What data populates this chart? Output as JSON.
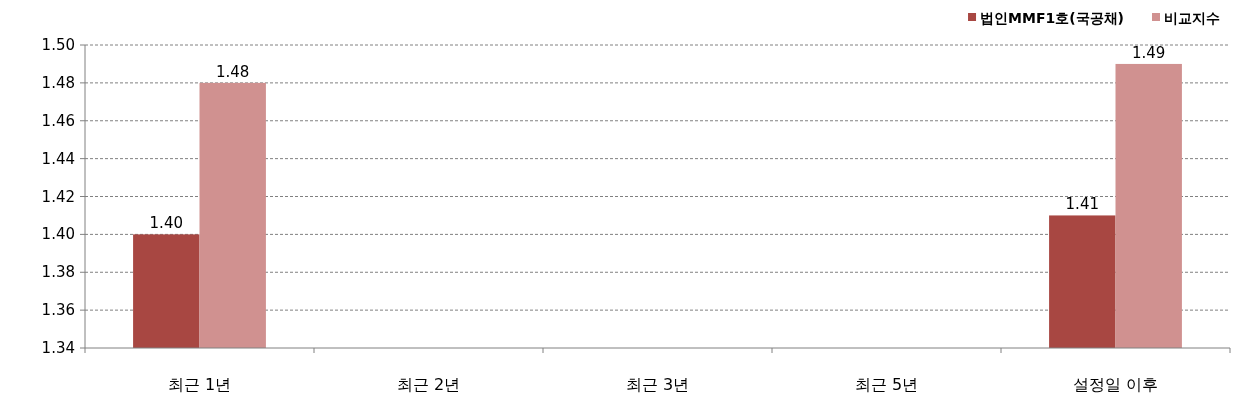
{
  "chart_data": {
    "type": "bar",
    "categories": [
      "최근 1년",
      "최근 2년",
      "최근 3년",
      "최근 5년",
      "설정일 이후"
    ],
    "series": [
      {
        "name": "법인MMF1호(국공채)",
        "color": "#a84742",
        "values": [
          1.4,
          null,
          null,
          null,
          1.41
        ],
        "value_labels": [
          "1.40",
          null,
          null,
          null,
          "1.41"
        ]
      },
      {
        "name": "비교지수",
        "color": "#d09190",
        "values": [
          1.48,
          null,
          null,
          null,
          1.49
        ],
        "value_labels": [
          "1.48",
          null,
          null,
          null,
          "1.49"
        ]
      }
    ],
    "ylim": [
      1.34,
      1.5
    ],
    "yticks": [
      {
        "value": 1.34,
        "label": "1.34"
      },
      {
        "value": 1.36,
        "label": "1.36"
      },
      {
        "value": 1.38,
        "label": "1.38"
      },
      {
        "value": 1.4,
        "label": "1.40"
      },
      {
        "value": 1.42,
        "label": "1.42"
      },
      {
        "value": 1.44,
        "label": "1.44"
      },
      {
        "value": 1.46,
        "label": "1.46"
      },
      {
        "value": 1.48,
        "label": "1.48"
      },
      {
        "value": 1.5,
        "label": "1.50"
      }
    ],
    "grid": "y",
    "legend": "top right"
  }
}
